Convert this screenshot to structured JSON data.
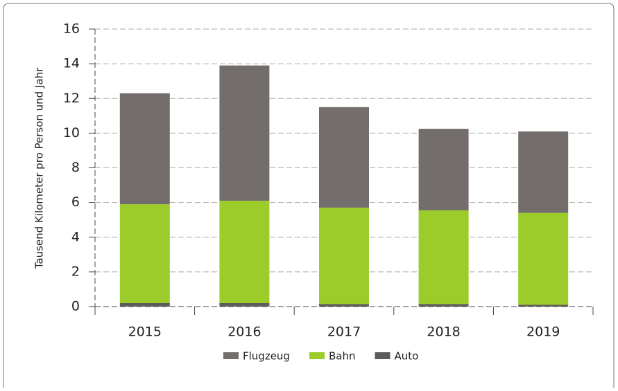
{
  "chart_data": {
    "type": "stacked_bar",
    "y_label": "Tausend Kilometer pro Person  und Jahr",
    "categories": [
      "2015",
      "2016",
      "2017",
      "2018",
      "2019"
    ],
    "series": [
      {
        "name": "Auto",
        "color": "#5f5b5a",
        "values": [
          0.2,
          0.2,
          0.15,
          0.15,
          0.1
        ]
      },
      {
        "name": "Bahn",
        "color": "#9ccc2a",
        "values": [
          5.7,
          5.9,
          5.55,
          5.4,
          5.3
        ]
      },
      {
        "name": "Flugzeug",
        "color": "#736d6b",
        "values": [
          6.4,
          7.8,
          5.8,
          4.7,
          4.7
        ]
      }
    ],
    "legend_order": [
      "Flugzeug",
      "Bahn",
      "Auto"
    ],
    "ylim": [
      0,
      16
    ],
    "yticks": [
      0,
      2,
      4,
      6,
      8,
      10,
      12,
      14,
      16
    ],
    "grid": true
  }
}
